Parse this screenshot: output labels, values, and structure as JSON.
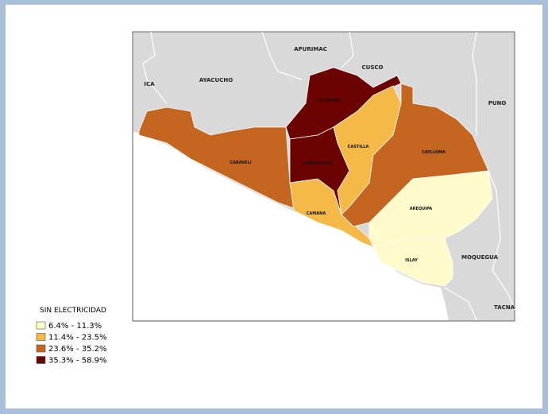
{
  "map": {
    "neighbors": [
      "ICA",
      "AYACUCHO",
      "APURIMAC",
      "CUSCO",
      "PUNO",
      "MOQUEGUA",
      "TACNA"
    ],
    "provinces": [
      {
        "name": "CARAVELI",
        "color": "#c4661f"
      },
      {
        "name": "CAMANA",
        "color": "#f5b947"
      },
      {
        "name": "LA UNION",
        "color": "#6b0303"
      },
      {
        "name": "CONDESUYOS",
        "color": "#6b0303"
      },
      {
        "name": "CASTILLA",
        "color": "#f5b947"
      },
      {
        "name": "CAYLLOMA",
        "color": "#c4661f"
      },
      {
        "name": "AREQUIPA",
        "color": "#fffaca"
      },
      {
        "name": "ISLAY",
        "color": "#fffaca"
      }
    ],
    "legend": {
      "title": "SIN ELECTRICIDAD",
      "items": [
        {
          "label": "6.4% - 11.3%",
          "color": "#fffaca"
        },
        {
          "label": "11.4% - 23.5%",
          "color": "#f5b947"
        },
        {
          "label": "23.6% - 35.2%",
          "color": "#c4661f"
        },
        {
          "label": "35.3% - 58.9%",
          "color": "#6b0303"
        }
      ]
    }
  }
}
